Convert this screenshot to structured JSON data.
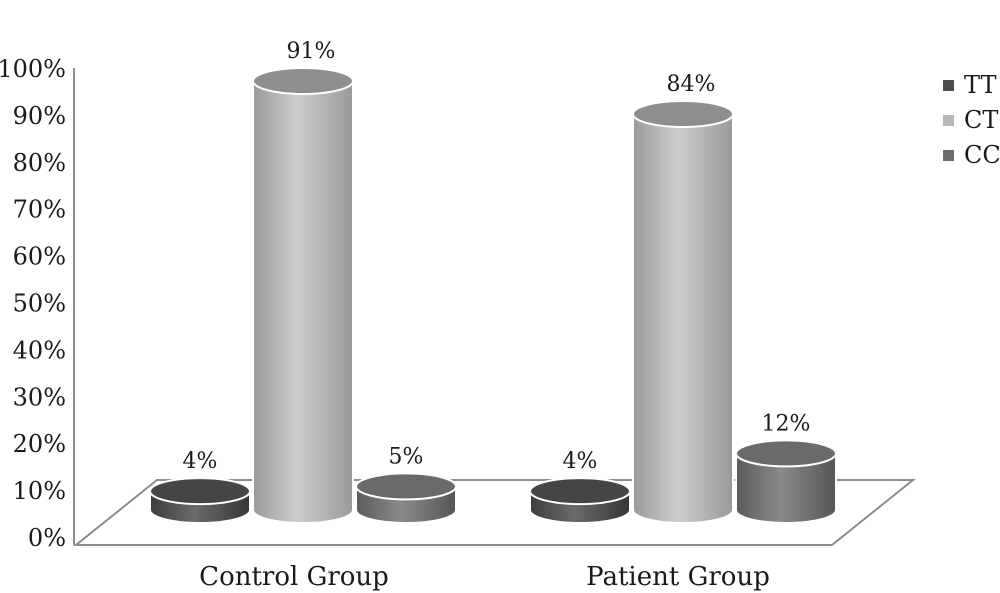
{
  "chart_data": {
    "type": "bar",
    "style": "3d-cylinder",
    "categories": [
      "Control Group",
      "Patient Group"
    ],
    "series": [
      {
        "name": "TT",
        "values": [
          4,
          4
        ],
        "color": "#4d4d4d"
      },
      {
        "name": "CT",
        "values": [
          91,
          84
        ],
        "color": "#b8b8b8"
      },
      {
        "name": "CC",
        "values": [
          5,
          12
        ],
        "color": "#6e6e6e"
      }
    ],
    "data_labels": [
      [
        "4%",
        "91%",
        "5%"
      ],
      [
        "4%",
        "84%",
        "12%"
      ]
    ],
    "ylim": [
      0,
      100
    ],
    "y_ticks": [
      "0%",
      "10%",
      "20%",
      "30%",
      "40%",
      "50%",
      "60%",
      "70%",
      "80%",
      "90%",
      "100%"
    ],
    "xlabel": "",
    "ylabel": "",
    "legend_position": "top-right",
    "grid": false
  }
}
